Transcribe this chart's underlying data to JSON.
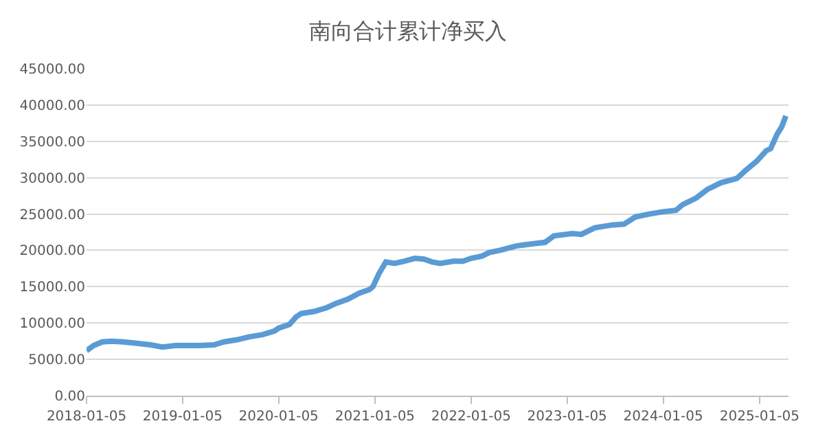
{
  "chart_data": {
    "type": "line",
    "title": "南向合计累计净买入",
    "x": [
      "2018-01-05",
      "2018-02-01",
      "2018-03-05",
      "2018-04-10",
      "2018-05-25",
      "2018-07-15",
      "2018-09-05",
      "2018-10-20",
      "2018-12-10",
      "2019-01-05",
      "2019-03-10",
      "2019-05-05",
      "2019-06-10",
      "2019-08-01",
      "2019-09-15",
      "2019-11-05",
      "2019-12-20",
      "2020-01-05",
      "2020-02-15",
      "2020-03-10",
      "2020-03-30",
      "2020-05-20",
      "2020-07-05",
      "2020-08-10",
      "2020-09-25",
      "2020-11-05",
      "2020-12-15",
      "2020-12-28",
      "2021-01-20",
      "2021-02-15",
      "2021-03-20",
      "2021-04-25",
      "2021-06-05",
      "2021-07-10",
      "2021-08-10",
      "2021-09-10",
      "2021-10-30",
      "2021-12-05",
      "2022-01-05",
      "2022-02-15",
      "2022-03-15",
      "2022-04-25",
      "2022-06-25",
      "2022-08-25",
      "2022-10-13",
      "2022-11-16",
      "2023-01-24",
      "2023-02-28",
      "2023-04-20",
      "2023-06-27",
      "2023-08-09",
      "2023-09-21",
      "2023-11-12",
      "2024-01-02",
      "2024-02-22",
      "2024-03-19",
      "2024-05-09",
      "2024-06-21",
      "2024-08-11",
      "2024-10-11",
      "2024-11-13",
      "2024-12-26",
      "2025-01-30",
      "2025-02-16",
      "2025-03-13",
      "2025-03-30",
      "2025-04-15"
    ],
    "series": [
      {
        "color": "#5b9bd5",
        "values": [
          6200,
          6900,
          7400,
          7500,
          7400,
          7200,
          7000,
          6700,
          6900,
          6900,
          6900,
          7000,
          7400,
          7700,
          8100,
          8400,
          8900,
          9300,
          9800,
          10800,
          11300,
          11600,
          12100,
          12700,
          13300,
          14100,
          14600,
          15000,
          16800,
          18400,
          18200,
          18500,
          18900,
          18800,
          18400,
          18200,
          18500,
          18500,
          18900,
          19200,
          19700,
          20000,
          20600,
          20900,
          21100,
          22000,
          22300,
          22200,
          23100,
          23500,
          23600,
          24600,
          25000,
          25300,
          25500,
          26300,
          27200,
          28400,
          29300,
          29900,
          31000,
          32300,
          33700,
          34000,
          36000,
          37000,
          38500
        ]
      }
    ],
    "xlim": [
      "2018-01-05",
      "2025-04-25"
    ],
    "xticks": [
      "2018-01-05",
      "2019-01-05",
      "2020-01-05",
      "2021-01-05",
      "2022-01-05",
      "2023-01-05",
      "2024-01-05",
      "2025-01-05"
    ],
    "ylim": [
      0,
      45000
    ],
    "yticks": [
      {
        "value": 0,
        "label": "0.00"
      },
      {
        "value": 5000,
        "label": "5000.00"
      },
      {
        "value": 10000,
        "label": "10000.00"
      },
      {
        "value": 15000,
        "label": "15000.00"
      },
      {
        "value": 20000,
        "label": "20000.00"
      },
      {
        "value": 25000,
        "label": "25000.00"
      },
      {
        "value": 30000,
        "label": "30000.00"
      },
      {
        "value": 35000,
        "label": "35000.00"
      },
      {
        "value": 40000,
        "label": "40000.00"
      },
      {
        "value": 45000,
        "label": "45000.00"
      }
    ],
    "grid": "y",
    "marker": "none",
    "line_style": "solid"
  }
}
